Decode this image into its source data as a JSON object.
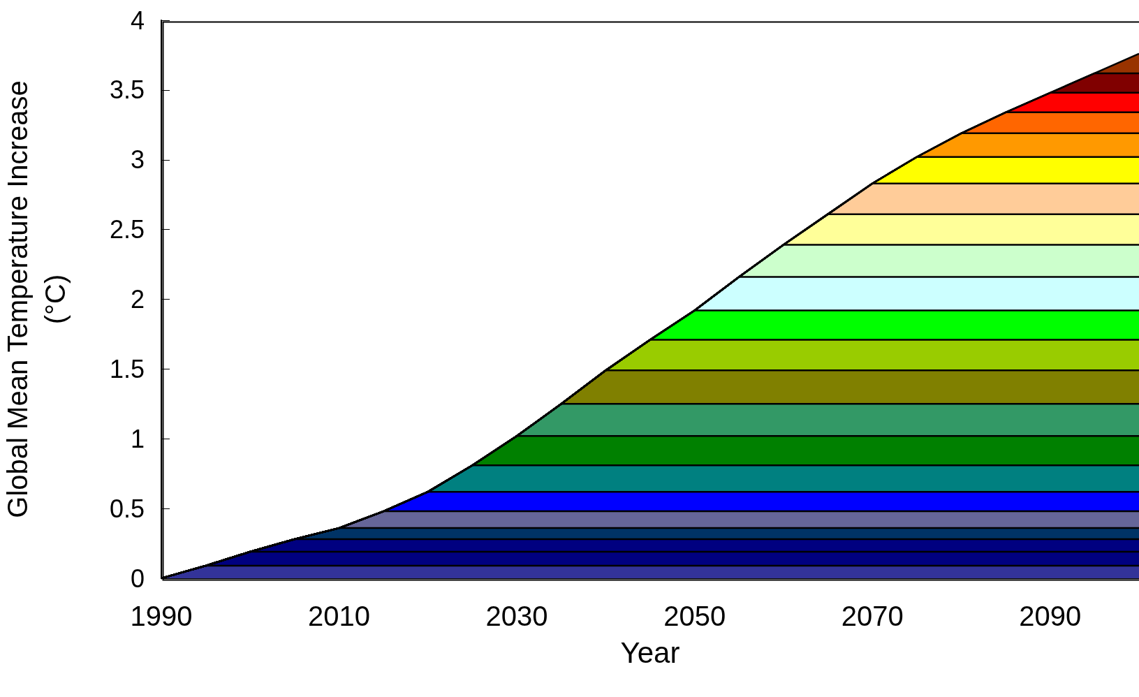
{
  "chart_data": {
    "type": "area",
    "stacked": true,
    "xlabel": "Year",
    "ylabel": "Global Mean Temperature Increase\n(°C)",
    "x": [
      1990,
      1995,
      2000,
      2005,
      2010,
      2015,
      2020,
      2025,
      2030,
      2035,
      2040,
      2045,
      2050,
      2055,
      2060,
      2065,
      2070,
      2075,
      2080,
      2085,
      2090,
      2095,
      2100
    ],
    "series": [
      {
        "color": "#333399",
        "values": [
          0,
          0.09,
          0.09,
          0.09,
          0.09,
          0.09,
          0.09,
          0.09,
          0.09,
          0.09,
          0.09,
          0.09,
          0.09,
          0.09,
          0.09,
          0.09,
          0.09,
          0.09,
          0.09,
          0.09,
          0.09,
          0.09,
          0.09
        ]
      },
      {
        "color": "#000080",
        "values": [
          0,
          0,
          0.1,
          0.1,
          0.1,
          0.1,
          0.1,
          0.1,
          0.1,
          0.1,
          0.1,
          0.1,
          0.1,
          0.1,
          0.1,
          0.1,
          0.1,
          0.1,
          0.1,
          0.1,
          0.1,
          0.1,
          0.1
        ]
      },
      {
        "color": "#000080",
        "values": [
          0,
          0,
          0,
          0.09,
          0.09,
          0.09,
          0.09,
          0.09,
          0.09,
          0.09,
          0.09,
          0.09,
          0.09,
          0.09,
          0.09,
          0.09,
          0.09,
          0.09,
          0.09,
          0.09,
          0.09,
          0.09,
          0.09
        ]
      },
      {
        "color": "#003366",
        "values": [
          0,
          0,
          0,
          0,
          0.08,
          0.08,
          0.08,
          0.08,
          0.08,
          0.08,
          0.08,
          0.08,
          0.08,
          0.08,
          0.08,
          0.08,
          0.08,
          0.08,
          0.08,
          0.08,
          0.08,
          0.08,
          0.08
        ]
      },
      {
        "color": "#666699",
        "values": [
          0,
          0,
          0,
          0,
          0,
          0.12,
          0.12,
          0.12,
          0.12,
          0.12,
          0.12,
          0.12,
          0.12,
          0.12,
          0.12,
          0.12,
          0.12,
          0.12,
          0.12,
          0.12,
          0.12,
          0.12,
          0.12
        ]
      },
      {
        "color": "#0000ff",
        "values": [
          0,
          0,
          0,
          0,
          0,
          0,
          0.14,
          0.14,
          0.14,
          0.14,
          0.14,
          0.14,
          0.14,
          0.14,
          0.14,
          0.14,
          0.14,
          0.14,
          0.14,
          0.14,
          0.14,
          0.14,
          0.14
        ]
      },
      {
        "color": "#008080",
        "values": [
          0,
          0,
          0,
          0,
          0,
          0,
          0,
          0.19,
          0.19,
          0.19,
          0.19,
          0.19,
          0.19,
          0.19,
          0.19,
          0.19,
          0.19,
          0.19,
          0.19,
          0.19,
          0.19,
          0.19,
          0.19
        ]
      },
      {
        "color": "#008000",
        "values": [
          0,
          0,
          0,
          0,
          0,
          0,
          0,
          0,
          0.21,
          0.21,
          0.21,
          0.21,
          0.21,
          0.21,
          0.21,
          0.21,
          0.21,
          0.21,
          0.21,
          0.21,
          0.21,
          0.21,
          0.21
        ]
      },
      {
        "color": "#339966",
        "values": [
          0,
          0,
          0,
          0,
          0,
          0,
          0,
          0,
          0,
          0.23,
          0.23,
          0.23,
          0.23,
          0.23,
          0.23,
          0.23,
          0.23,
          0.23,
          0.23,
          0.23,
          0.23,
          0.23,
          0.23
        ]
      },
      {
        "color": "#808000",
        "values": [
          0,
          0,
          0,
          0,
          0,
          0,
          0,
          0,
          0,
          0,
          0.24,
          0.24,
          0.24,
          0.24,
          0.24,
          0.24,
          0.24,
          0.24,
          0.24,
          0.24,
          0.24,
          0.24,
          0.24
        ]
      },
      {
        "color": "#99cc00",
        "values": [
          0,
          0,
          0,
          0,
          0,
          0,
          0,
          0,
          0,
          0,
          0,
          0.22,
          0.22,
          0.22,
          0.22,
          0.22,
          0.22,
          0.22,
          0.22,
          0.22,
          0.22,
          0.22,
          0.22
        ]
      },
      {
        "color": "#00ff00",
        "values": [
          0,
          0,
          0,
          0,
          0,
          0,
          0,
          0,
          0,
          0,
          0,
          0,
          0.21,
          0.21,
          0.21,
          0.21,
          0.21,
          0.21,
          0.21,
          0.21,
          0.21,
          0.21,
          0.21
        ]
      },
      {
        "color": "#ccffff",
        "values": [
          0,
          0,
          0,
          0,
          0,
          0,
          0,
          0,
          0,
          0,
          0,
          0,
          0,
          0.24,
          0.24,
          0.24,
          0.24,
          0.24,
          0.24,
          0.24,
          0.24,
          0.24,
          0.24
        ]
      },
      {
        "color": "#ccffcc",
        "values": [
          0,
          0,
          0,
          0,
          0,
          0,
          0,
          0,
          0,
          0,
          0,
          0,
          0,
          0,
          0.23,
          0.23,
          0.23,
          0.23,
          0.23,
          0.23,
          0.23,
          0.23,
          0.23
        ]
      },
      {
        "color": "#ffff99",
        "values": [
          0,
          0,
          0,
          0,
          0,
          0,
          0,
          0,
          0,
          0,
          0,
          0,
          0,
          0,
          0,
          0.22,
          0.22,
          0.22,
          0.22,
          0.22,
          0.22,
          0.22,
          0.22
        ]
      },
      {
        "color": "#ffcc99",
        "values": [
          0,
          0,
          0,
          0,
          0,
          0,
          0,
          0,
          0,
          0,
          0,
          0,
          0,
          0,
          0,
          0,
          0.22,
          0.22,
          0.22,
          0.22,
          0.22,
          0.22,
          0.22
        ]
      },
      {
        "color": "#ffff00",
        "values": [
          0,
          0,
          0,
          0,
          0,
          0,
          0,
          0,
          0,
          0,
          0,
          0,
          0,
          0,
          0,
          0,
          0,
          0.19,
          0.19,
          0.19,
          0.19,
          0.19,
          0.19
        ]
      },
      {
        "color": "#ff9900",
        "values": [
          0,
          0,
          0,
          0,
          0,
          0,
          0,
          0,
          0,
          0,
          0,
          0,
          0,
          0,
          0,
          0,
          0,
          0,
          0.17,
          0.17,
          0.17,
          0.17,
          0.17
        ]
      },
      {
        "color": "#ff6600",
        "values": [
          0,
          0,
          0,
          0,
          0,
          0,
          0,
          0,
          0,
          0,
          0,
          0,
          0,
          0,
          0,
          0,
          0,
          0,
          0,
          0.15,
          0.15,
          0.15,
          0.15
        ]
      },
      {
        "color": "#ff0000",
        "values": [
          0,
          0,
          0,
          0,
          0,
          0,
          0,
          0,
          0,
          0,
          0,
          0,
          0,
          0,
          0,
          0,
          0,
          0,
          0,
          0,
          0.14,
          0.14,
          0.14
        ]
      },
      {
        "color": "#800000",
        "values": [
          0,
          0,
          0,
          0,
          0,
          0,
          0,
          0,
          0,
          0,
          0,
          0,
          0,
          0,
          0,
          0,
          0,
          0,
          0,
          0,
          0,
          0.14,
          0.14
        ]
      },
      {
        "color": "#993300",
        "values": [
          0,
          0,
          0,
          0,
          0,
          0,
          0,
          0,
          0,
          0,
          0,
          0,
          0,
          0,
          0,
          0,
          0,
          0,
          0,
          0,
          0,
          0,
          0.14
        ]
      }
    ],
    "xlim": [
      1990,
      2100
    ],
    "xticks": [
      1990,
      2010,
      2030,
      2050,
      2070,
      2090
    ],
    "ylim": [
      0,
      4
    ],
    "yticks": [
      0,
      0.5,
      1,
      1.5,
      2,
      2.5,
      3,
      3.5,
      4
    ],
    "grid": false
  }
}
